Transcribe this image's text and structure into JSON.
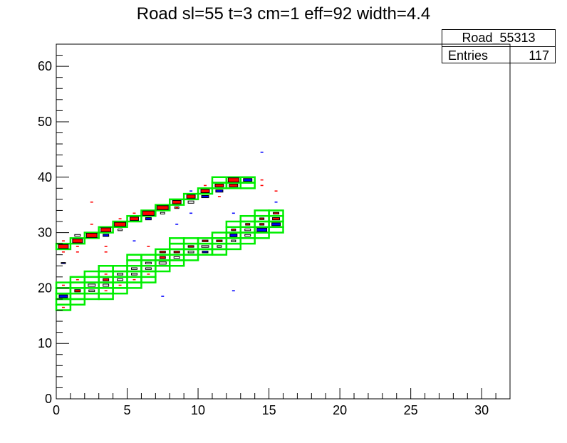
{
  "chart_data": {
    "type": "heatmap",
    "title": "Road sl=55 t=3 cm=1 eff=92 width=4.4",
    "xlim": [
      0,
      32
    ],
    "ylim": [
      0,
      64
    ],
    "x_major_ticks": [
      0,
      5,
      10,
      15,
      20,
      25,
      30
    ],
    "y_major_ticks": [
      0,
      10,
      20,
      30,
      40,
      50,
      60
    ],
    "stats": {
      "name": "Road_55313",
      "entries_label": "Entries",
      "entries_value": "117"
    },
    "colors": {
      "road": "#00ee00",
      "red_hit": "#ff0000",
      "blue_hit": "#0000ff",
      "axis": "#000000"
    },
    "road_boxes": [
      [
        0,
        27
      ],
      [
        1,
        28
      ],
      [
        2,
        29
      ],
      [
        3,
        30
      ],
      [
        4,
        31
      ],
      [
        5,
        32
      ],
      [
        6,
        33
      ],
      [
        7,
        34
      ],
      [
        8,
        35
      ],
      [
        9,
        36
      ],
      [
        10,
        37
      ],
      [
        11,
        38
      ],
      [
        12,
        38
      ],
      [
        11,
        39
      ],
      [
        12,
        39
      ],
      [
        13,
        38
      ],
      [
        13,
        39
      ],
      [
        0,
        16
      ],
      [
        0,
        17
      ],
      [
        0,
        18
      ],
      [
        0,
        19
      ],
      [
        0,
        20
      ],
      [
        1,
        17
      ],
      [
        1,
        18
      ],
      [
        1,
        19
      ],
      [
        1,
        20
      ],
      [
        1,
        21
      ],
      [
        2,
        18
      ],
      [
        2,
        19
      ],
      [
        2,
        20
      ],
      [
        2,
        21
      ],
      [
        2,
        22
      ],
      [
        3,
        18
      ],
      [
        3,
        19
      ],
      [
        3,
        20
      ],
      [
        3,
        21
      ],
      [
        3,
        22
      ],
      [
        3,
        23
      ],
      [
        4,
        19
      ],
      [
        4,
        20
      ],
      [
        4,
        21
      ],
      [
        4,
        22
      ],
      [
        4,
        23
      ],
      [
        5,
        20
      ],
      [
        5,
        21
      ],
      [
        5,
        22
      ],
      [
        5,
        23
      ],
      [
        5,
        24
      ],
      [
        5,
        25
      ],
      [
        6,
        21
      ],
      [
        6,
        22
      ],
      [
        6,
        23
      ],
      [
        6,
        24
      ],
      [
        6,
        25
      ],
      [
        7,
        23
      ],
      [
        7,
        24
      ],
      [
        7,
        25
      ],
      [
        7,
        26
      ],
      [
        8,
        24
      ],
      [
        8,
        25
      ],
      [
        8,
        26
      ],
      [
        8,
        27
      ],
      [
        8,
        28
      ],
      [
        9,
        25
      ],
      [
        9,
        26
      ],
      [
        9,
        27
      ],
      [
        9,
        28
      ],
      [
        10,
        26
      ],
      [
        10,
        27
      ],
      [
        10,
        28
      ],
      [
        11,
        26
      ],
      [
        11,
        27
      ],
      [
        11,
        28
      ],
      [
        11,
        29
      ],
      [
        12,
        27
      ],
      [
        12,
        28
      ],
      [
        12,
        29
      ],
      [
        12,
        30
      ],
      [
        12,
        31
      ],
      [
        13,
        28
      ],
      [
        13,
        29
      ],
      [
        13,
        30
      ],
      [
        13,
        31
      ],
      [
        13,
        32
      ],
      [
        14,
        29
      ],
      [
        14,
        30
      ],
      [
        14,
        31
      ],
      [
        14,
        32
      ],
      [
        14,
        33
      ],
      [
        15,
        30
      ],
      [
        15,
        31
      ],
      [
        15,
        32
      ],
      [
        15,
        33
      ]
    ],
    "hits": [
      {
        "x": 0,
        "y": 27,
        "w": 0.7,
        "h": 0.7,
        "c": "red"
      },
      {
        "x": 1,
        "y": 28,
        "w": 0.7,
        "h": 0.7,
        "c": "red"
      },
      {
        "x": 2,
        "y": 29,
        "w": 0.75,
        "h": 0.75,
        "c": "red"
      },
      {
        "x": 3,
        "y": 30,
        "w": 0.7,
        "h": 0.7,
        "c": "red"
      },
      {
        "x": 4,
        "y": 31,
        "w": 0.8,
        "h": 0.7,
        "c": "red"
      },
      {
        "x": 5,
        "y": 32,
        "w": 0.6,
        "h": 0.6,
        "c": "red"
      },
      {
        "x": 6,
        "y": 33,
        "w": 0.8,
        "h": 0.8,
        "c": "red"
      },
      {
        "x": 7,
        "y": 34,
        "w": 0.8,
        "h": 0.7,
        "c": "red"
      },
      {
        "x": 8,
        "y": 35,
        "w": 0.6,
        "h": 0.6,
        "c": "red"
      },
      {
        "x": 9,
        "y": 36,
        "w": 0.6,
        "h": 0.6,
        "c": "red"
      },
      {
        "x": 10,
        "y": 37,
        "w": 0.6,
        "h": 0.6,
        "c": "red"
      },
      {
        "x": 11,
        "y": 38,
        "w": 0.6,
        "h": 0.5,
        "c": "red"
      },
      {
        "x": 12,
        "y": 38,
        "w": 0.6,
        "h": 0.5,
        "c": "red"
      },
      {
        "x": 12,
        "y": 39,
        "w": 0.75,
        "h": 0.75,
        "c": "red"
      },
      {
        "x": 13,
        "y": 39,
        "w": 0.6,
        "h": 0.5,
        "c": "blue"
      },
      {
        "x": 3,
        "y": 29,
        "w": 0.4,
        "h": 0.4,
        "c": "blue"
      },
      {
        "x": 6,
        "y": 32,
        "w": 0.4,
        "h": 0.4,
        "c": "blue"
      },
      {
        "x": 7,
        "y": 33,
        "w": 0.3,
        "h": 0.3,
        "c": "white"
      },
      {
        "x": 8,
        "y": 34,
        "w": 0.3,
        "h": 0.3,
        "c": "white"
      },
      {
        "x": 9,
        "y": 35,
        "w": 0.4,
        "h": 0.4,
        "c": "white"
      },
      {
        "x": 10,
        "y": 36,
        "w": 0.5,
        "h": 0.4,
        "c": "blue"
      },
      {
        "x": 11,
        "y": 37,
        "w": 0.5,
        "h": 0.4,
        "c": "blue"
      },
      {
        "x": 1,
        "y": 29,
        "w": 0.4,
        "h": 0.3,
        "c": "white"
      },
      {
        "x": 4,
        "y": 30,
        "w": 0.3,
        "h": 0.3,
        "c": "white"
      },
      {
        "x": 0,
        "y": 26,
        "w": 0.2,
        "h": 0.2,
        "c": "red"
      },
      {
        "x": 0,
        "y": 28,
        "w": 0.2,
        "h": 0.2,
        "c": "red"
      },
      {
        "x": 1,
        "y": 27,
        "w": 0.2,
        "h": 0.2,
        "c": "red"
      },
      {
        "x": 1,
        "y": 26,
        "w": 0.2,
        "h": 0.2,
        "c": "red"
      },
      {
        "x": 2,
        "y": 31,
        "w": 0.2,
        "h": 0.2,
        "c": "red"
      },
      {
        "x": 2,
        "y": 35,
        "w": 0.2,
        "h": 0.2,
        "c": "red"
      },
      {
        "x": 3,
        "y": 27,
        "w": 0.2,
        "h": 0.2,
        "c": "red"
      },
      {
        "x": 3,
        "y": 26,
        "w": 0.2,
        "h": 0.2,
        "c": "red"
      },
      {
        "x": 4,
        "y": 32,
        "w": 0.2,
        "h": 0.2,
        "c": "red"
      },
      {
        "x": 5,
        "y": 33,
        "w": 0.2,
        "h": 0.2,
        "c": "red"
      },
      {
        "x": 6,
        "y": 27,
        "w": 0.2,
        "h": 0.2,
        "c": "red"
      },
      {
        "x": 8,
        "y": 34,
        "w": 0.2,
        "h": 0.2,
        "c": "red"
      },
      {
        "x": 10,
        "y": 38,
        "w": 0.2,
        "h": 0.2,
        "c": "red"
      },
      {
        "x": 11,
        "y": 36,
        "w": 0.2,
        "h": 0.2,
        "c": "red"
      },
      {
        "x": 14,
        "y": 39,
        "w": 0.2,
        "h": 0.2,
        "c": "red"
      },
      {
        "x": 14,
        "y": 38,
        "w": 0.2,
        "h": 0.2,
        "c": "red"
      },
      {
        "x": 15,
        "y": 37,
        "w": 0.2,
        "h": 0.2,
        "c": "red"
      },
      {
        "x": 15,
        "y": 35,
        "w": 0.2,
        "h": 0.2,
        "c": "blue"
      },
      {
        "x": 14,
        "y": 44,
        "w": 0.2,
        "h": 0.2,
        "c": "blue"
      },
      {
        "x": 12,
        "y": 33,
        "w": 0.2,
        "h": 0.2,
        "c": "blue"
      },
      {
        "x": 9,
        "y": 33,
        "w": 0.2,
        "h": 0.2,
        "c": "blue"
      },
      {
        "x": 8,
        "y": 31,
        "w": 0.2,
        "h": 0.2,
        "c": "blue"
      },
      {
        "x": 0,
        "y": 24,
        "w": 0.3,
        "h": 0.2,
        "c": "blue"
      },
      {
        "x": 7,
        "y": 18,
        "w": 0.2,
        "h": 0.2,
        "c": "blue"
      },
      {
        "x": 12,
        "y": 19,
        "w": 0.2,
        "h": 0.2,
        "c": "blue"
      },
      {
        "x": 5,
        "y": 28,
        "w": 0.2,
        "h": 0.2,
        "c": "blue"
      },
      {
        "x": 9,
        "y": 37,
        "w": 0.2,
        "h": 0.2,
        "c": "blue"
      },
      {
        "x": 0,
        "y": 18,
        "w": 0.6,
        "h": 0.5,
        "c": "blue"
      },
      {
        "x": 1,
        "y": 19,
        "w": 0.4,
        "h": 0.4,
        "c": "red"
      },
      {
        "x": 2,
        "y": 19,
        "w": 0.4,
        "h": 0.3,
        "c": "white"
      },
      {
        "x": 2,
        "y": 20,
        "w": 0.5,
        "h": 0.4,
        "c": "white"
      },
      {
        "x": 3,
        "y": 20,
        "w": 0.4,
        "h": 0.4,
        "c": "white"
      },
      {
        "x": 3,
        "y": 21,
        "w": 0.4,
        "h": 0.4,
        "c": "red"
      },
      {
        "x": 4,
        "y": 21,
        "w": 0.4,
        "h": 0.3,
        "c": "white"
      },
      {
        "x": 4,
        "y": 22,
        "w": 0.4,
        "h": 0.3,
        "c": "white"
      },
      {
        "x": 5,
        "y": 22,
        "w": 0.4,
        "h": 0.3,
        "c": "white"
      },
      {
        "x": 5,
        "y": 23,
        "w": 0.4,
        "h": 0.3,
        "c": "white"
      },
      {
        "x": 6,
        "y": 23,
        "w": 0.4,
        "h": 0.3,
        "c": "white"
      },
      {
        "x": 6,
        "y": 24,
        "w": 0.4,
        "h": 0.3,
        "c": "white"
      },
      {
        "x": 7,
        "y": 24,
        "w": 0.5,
        "h": 0.4,
        "c": "white"
      },
      {
        "x": 7,
        "y": 25,
        "w": 0.4,
        "h": 0.4,
        "c": "red"
      },
      {
        "x": 7,
        "y": 26,
        "w": 0.4,
        "h": 0.3,
        "c": "red"
      },
      {
        "x": 8,
        "y": 25,
        "w": 0.4,
        "h": 0.3,
        "c": "white"
      },
      {
        "x": 8,
        "y": 26,
        "w": 0.4,
        "h": 0.3,
        "c": "red"
      },
      {
        "x": 9,
        "y": 26,
        "w": 0.4,
        "h": 0.3,
        "c": "white"
      },
      {
        "x": 9,
        "y": 27,
        "w": 0.4,
        "h": 0.3,
        "c": "red"
      },
      {
        "x": 10,
        "y": 26,
        "w": 0.4,
        "h": 0.3,
        "c": "blue"
      },
      {
        "x": 10,
        "y": 27,
        "w": 0.5,
        "h": 0.3,
        "c": "white"
      },
      {
        "x": 10,
        "y": 28,
        "w": 0.4,
        "h": 0.3,
        "c": "red"
      },
      {
        "x": 11,
        "y": 27,
        "w": 0.3,
        "h": 0.3,
        "c": "white"
      },
      {
        "x": 11,
        "y": 28,
        "w": 0.4,
        "h": 0.3,
        "c": "red"
      },
      {
        "x": 12,
        "y": 28,
        "w": 0.3,
        "h": 0.3,
        "c": "white"
      },
      {
        "x": 12,
        "y": 29,
        "w": 0.5,
        "h": 0.5,
        "c": "blue"
      },
      {
        "x": 12,
        "y": 30,
        "w": 0.3,
        "h": 0.3,
        "c": "red"
      },
      {
        "x": 13,
        "y": 29,
        "w": 0.4,
        "h": 0.3,
        "c": "white"
      },
      {
        "x": 13,
        "y": 30,
        "w": 0.4,
        "h": 0.3,
        "c": "white"
      },
      {
        "x": 13,
        "y": 31,
        "w": 0.3,
        "h": 0.3,
        "c": "red"
      },
      {
        "x": 14,
        "y": 30,
        "w": 0.7,
        "h": 0.6,
        "c": "blue"
      },
      {
        "x": 14,
        "y": 31,
        "w": 0.3,
        "h": 0.3,
        "c": "red"
      },
      {
        "x": 15,
        "y": 31,
        "w": 0.6,
        "h": 0.5,
        "c": "blue"
      },
      {
        "x": 15,
        "y": 32,
        "w": 0.5,
        "h": 0.4,
        "c": "red"
      },
      {
        "x": 15,
        "y": 33,
        "w": 0.4,
        "h": 0.3,
        "c": "red"
      },
      {
        "x": 14,
        "y": 32,
        "w": 0.3,
        "h": 0.3,
        "c": "red"
      },
      {
        "x": 0,
        "y": 16,
        "w": 0.2,
        "h": 0.2,
        "c": "red"
      },
      {
        "x": 0,
        "y": 20,
        "w": 0.2,
        "h": 0.2,
        "c": "red"
      },
      {
        "x": 1,
        "y": 21,
        "w": 0.2,
        "h": 0.2,
        "c": "red"
      },
      {
        "x": 3,
        "y": 19,
        "w": 0.2,
        "h": 0.2,
        "c": "red"
      },
      {
        "x": 3,
        "y": 22,
        "w": 0.2,
        "h": 0.2,
        "c": "red"
      },
      {
        "x": 5,
        "y": 21,
        "w": 0.2,
        "h": 0.2,
        "c": "red"
      },
      {
        "x": 6,
        "y": 22,
        "w": 0.2,
        "h": 0.2,
        "c": "red"
      },
      {
        "x": 4,
        "y": 20,
        "w": 0.2,
        "h": 0.2,
        "c": "red"
      }
    ]
  }
}
